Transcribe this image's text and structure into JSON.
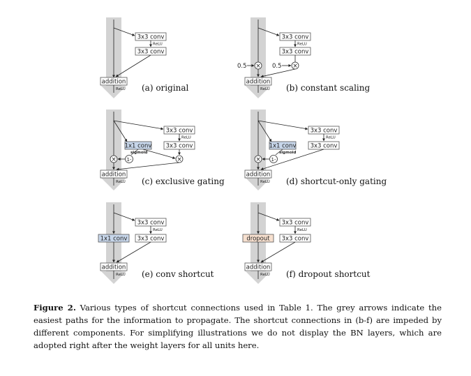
{
  "diagrams": [
    {
      "caption": "(a) original"
    },
    {
      "caption": "(b) constant scaling"
    },
    {
      "caption": "(c) exclusive gating"
    },
    {
      "caption": "(d) shortcut-only gating"
    },
    {
      "caption": "(e) conv shortcut"
    },
    {
      "caption": "(f) dropout shortcut"
    }
  ],
  "labels": {
    "conv3x3": "3x3 conv",
    "conv1x1": "1x1 conv",
    "relu": "ReLU",
    "addition": "addition",
    "sigmoid": "sigmoid",
    "dropout": "dropout",
    "scale": "0.5",
    "one_minus": "1-",
    "times": "×"
  },
  "colors": {
    "grey_arrow": "#d3d3d3",
    "conv1x1_fill": "#c7d6ea",
    "dropout_fill": "#f7e0cf",
    "box_border": "#555555"
  },
  "figure": {
    "label": "Figure 2.",
    "text": " Various types of shortcut connections used in Table 1. The grey arrows indicate the easiest paths for the information to propagate. The shortcut connections in (b-f) are impeded by different components. For simplifying illustrations we do not display the BN layers, which are adopted right after the weight layers for all units here."
  }
}
